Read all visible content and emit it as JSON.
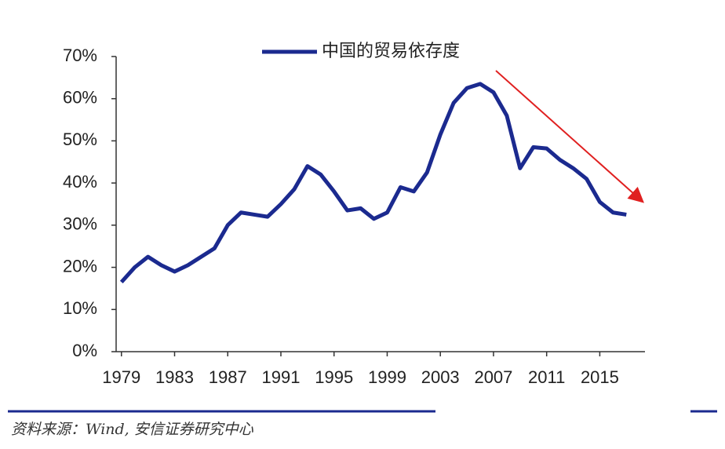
{
  "chart_data": {
    "type": "line",
    "x": [
      1979,
      1980,
      1981,
      1982,
      1983,
      1984,
      1985,
      1986,
      1987,
      1988,
      1989,
      1990,
      1991,
      1992,
      1993,
      1994,
      1995,
      1996,
      1997,
      1998,
      1999,
      2000,
      2001,
      2002,
      2003,
      2004,
      2005,
      2006,
      2007,
      2008,
      2009,
      2010,
      2011,
      2012,
      2013,
      2014,
      2015,
      2016,
      2017
    ],
    "series": [
      {
        "name": "中国的贸易依存度",
        "color": "#1b2a8f",
        "values": [
          16.5,
          20,
          22.5,
          20.5,
          19,
          20.5,
          22.5,
          24.5,
          30,
          33,
          32.5,
          32,
          35,
          38.5,
          44,
          42,
          38,
          33.5,
          34,
          31.5,
          33,
          39,
          38,
          42.5,
          51.5,
          59,
          62.5,
          63.5,
          61.5,
          56,
          43.5,
          48.5,
          48.2,
          45.5,
          43.5,
          41,
          35.5,
          33,
          32.5
        ]
      }
    ],
    "xlim": [
      1978.6,
      2018.4
    ],
    "xticks": [
      1979,
      1983,
      1987,
      1991,
      1995,
      1999,
      2003,
      2007,
      2011,
      2015
    ],
    "ylim": [
      0,
      70
    ],
    "yticks": [
      {
        "value": 0,
        "label": "0%"
      },
      {
        "value": 10,
        "label": "10%"
      },
      {
        "value": 20,
        "label": "20%"
      },
      {
        "value": 30,
        "label": "30%"
      },
      {
        "value": 40,
        "label": "40%"
      },
      {
        "value": 50,
        "label": "50%"
      },
      {
        "value": 60,
        "label": "60%"
      },
      {
        "value": 70,
        "label": "70%"
      }
    ],
    "source": "资料来源：Wind, 安信证券研究中心"
  }
}
